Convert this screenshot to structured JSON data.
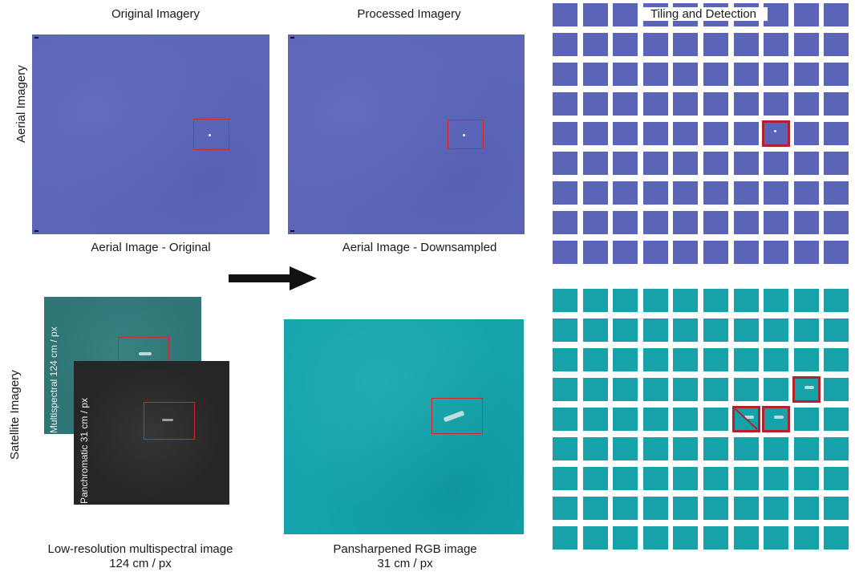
{
  "headers": {
    "original": "Original Imagery",
    "processed": "Processed Imagery",
    "tiling": "Tiling and Detection"
  },
  "rows": {
    "aerial": "Aerial Imagery",
    "satellite": "Satellite Imagery"
  },
  "captions": {
    "aerial_original": "Aerial Image - Original",
    "aerial_downsampled": "Aerial Image - Downsampled",
    "lowres_line1": "Low-resolution multispectral image",
    "lowres_line2": "124 cm / px",
    "pansharpened_line1": "Pansharpened RGB image",
    "pansharpened_line2": "31 cm / px"
  },
  "inset_labels": {
    "multispectral": "Multispectral 124 cm / px",
    "panchromatic": "Panchromatic 31 cm / px"
  },
  "colors": {
    "aerial": "#5b66b9",
    "satellite": "#16a3ab",
    "detection": "#d8262b"
  },
  "grids": {
    "aerial": {
      "cols": 10,
      "rows": 9,
      "detections": [
        [
          4,
          7
        ]
      ]
    },
    "satellite": {
      "cols": 10,
      "rows": 9,
      "detections": [
        [
          3,
          8
        ],
        [
          4,
          6
        ],
        [
          4,
          7
        ]
      ]
    }
  }
}
